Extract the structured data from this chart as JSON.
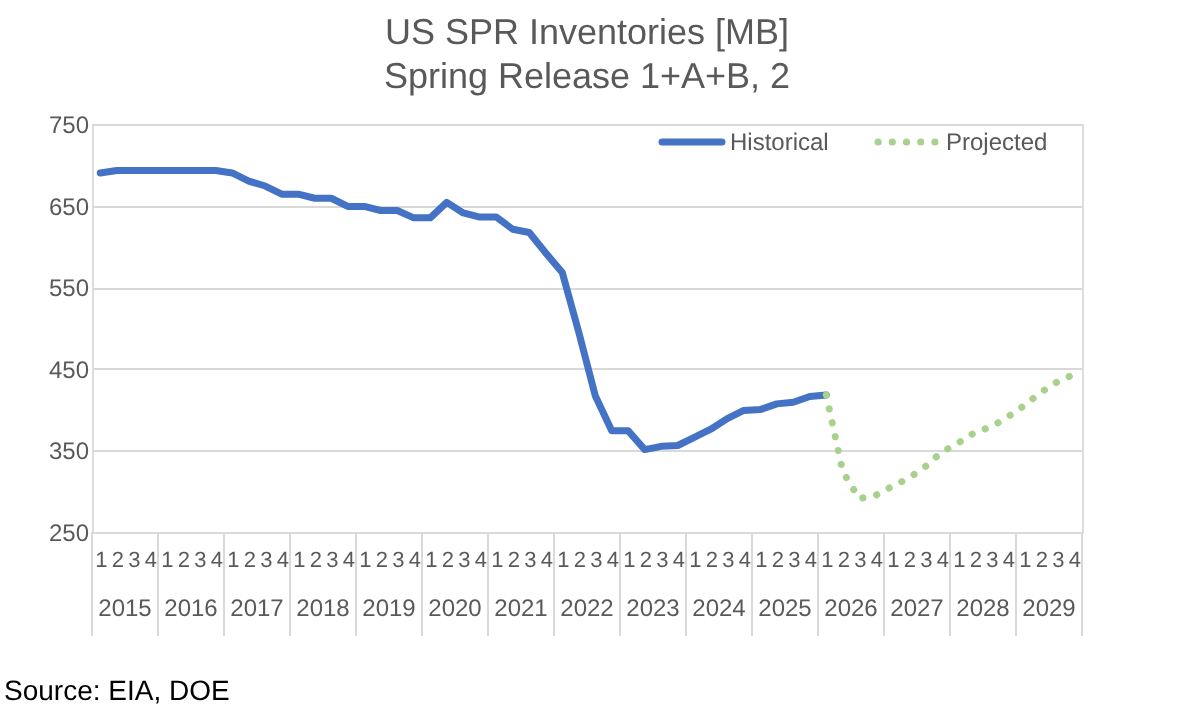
{
  "chart_data": {
    "type": "line",
    "title": "US SPR Inventories [MB]",
    "subtitle": "Spring Release 1+A+B, 2",
    "categories": [
      "1",
      "2",
      "3",
      "4",
      "1",
      "2",
      "3",
      "4",
      "1",
      "2",
      "3",
      "4",
      "1",
      "2",
      "3",
      "4",
      "1",
      "2",
      "3",
      "4",
      "1",
      "2",
      "3",
      "4",
      "1",
      "2",
      "3",
      "4",
      "1",
      "2",
      "3",
      "4",
      "1",
      "2",
      "3",
      "4",
      "1",
      "2",
      "3",
      "4",
      "1",
      "2",
      "3",
      "4",
      "1",
      "2",
      "3",
      "4",
      "1",
      "2",
      "3",
      "4",
      "1",
      "2",
      "3",
      "4",
      "1",
      "2",
      "3",
      "4"
    ],
    "series": [
      {
        "name": "Historical",
        "color": "#4472c4",
        "line_style": "solid",
        "values": [
          690,
          693,
          693,
          693,
          693,
          693,
          693,
          693,
          690,
          680,
          674,
          664,
          664,
          659,
          659,
          649,
          649,
          644,
          644,
          635,
          635,
          654,
          641,
          636,
          636,
          621,
          617,
          592,
          568,
          495,
          417,
          374,
          374,
          351,
          355,
          356,
          366,
          376,
          389,
          399,
          400,
          407,
          409,
          416,
          418,
          null,
          null,
          null,
          null,
          null,
          null,
          null,
          null,
          null,
          null,
          null,
          null,
          null,
          null,
          null
        ]
      },
      {
        "name": "Projected",
        "color": "#a9d18e",
        "line_style": "dotted",
        "values": [
          null,
          null,
          null,
          null,
          null,
          null,
          null,
          null,
          null,
          null,
          null,
          null,
          null,
          null,
          null,
          null,
          null,
          null,
          null,
          null,
          null,
          null,
          null,
          null,
          null,
          null,
          null,
          null,
          null,
          null,
          null,
          null,
          null,
          null,
          null,
          null,
          null,
          null,
          null,
          null,
          null,
          null,
          null,
          null,
          418,
          324,
          291,
          295,
          306,
          316,
          330,
          348,
          359,
          372,
          379,
          391,
          405,
          421,
          434,
          443
        ]
      }
    ],
    "ylim": [
      250,
      750
    ],
    "yticks": [
      250,
      350,
      450,
      550,
      650,
      750
    ],
    "grid": "y",
    "legend": "top right",
    "marker": "none",
    "annotations": [
      "2015",
      "2016",
      "2017",
      "2018",
      "2019",
      "2020",
      "2021",
      "2022",
      "2023",
      "2024",
      "2025",
      "2026",
      "2027",
      "2028",
      "2029",
      "Source: EIA, DOE"
    ]
  }
}
